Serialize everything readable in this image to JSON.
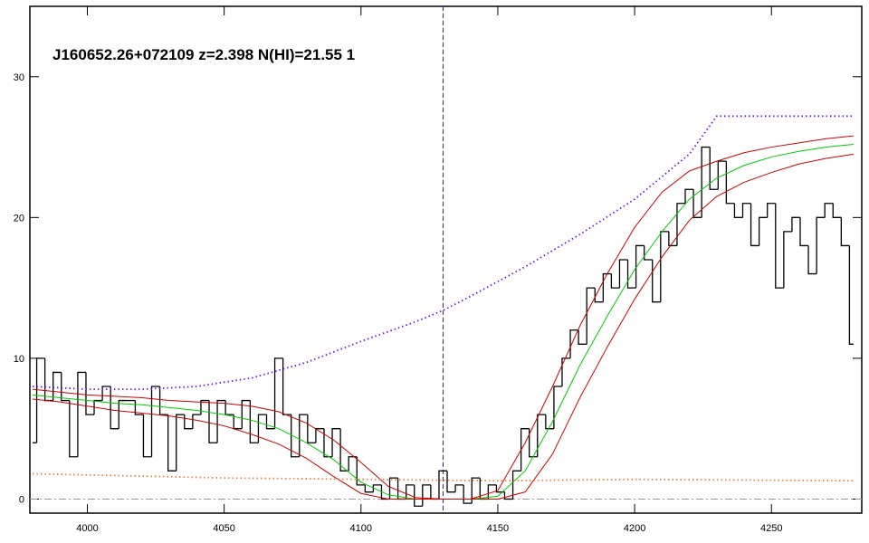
{
  "chart_data": {
    "type": "spectrum",
    "title": "J160652.26+072109 z=2.398 N(HI)=21.55 1",
    "xlim": [
      3979,
      4283
    ],
    "ylim": [
      -1,
      35
    ],
    "xticks": [
      4000,
      4050,
      4100,
      4150,
      4200,
      4250
    ],
    "yticks": [
      0,
      10,
      20,
      30
    ],
    "vline": {
      "x": 4130,
      "color": "#2020c0"
    },
    "hline": {
      "y": 0,
      "color": "#999999"
    },
    "series": [
      {
        "style": "steps",
        "color": "#000000",
        "x": [
          3980,
          3983,
          3986,
          3989,
          3992,
          3995,
          3998,
          4001,
          4004,
          4007,
          4010,
          4013,
          4016,
          4019,
          4022,
          4025,
          4028,
          4031,
          4034,
          4037,
          4040,
          4043,
          4046,
          4049,
          4052,
          4055,
          4058,
          4061,
          4064,
          4067,
          4070,
          4073,
          4076,
          4079,
          4082,
          4085,
          4088,
          4091,
          4094,
          4097,
          4100,
          4103,
          4106,
          4109,
          4112,
          4115,
          4118,
          4121,
          4124,
          4127,
          4130,
          4133,
          4136,
          4139,
          4142,
          4145,
          4148,
          4151,
          4154,
          4157,
          4160,
          4163,
          4166,
          4169,
          4172,
          4175,
          4178,
          4181,
          4184,
          4187,
          4190,
          4193,
          4196,
          4199,
          4202,
          4205,
          4208,
          4211,
          4214,
          4217,
          4220,
          4223,
          4226,
          4229,
          4232,
          4235,
          4238,
          4241,
          4244,
          4247,
          4250,
          4253,
          4256,
          4259,
          4262,
          4265,
          4268,
          4271,
          4274,
          4277,
          4280
        ],
        "values": [
          4,
          10,
          7,
          9,
          7,
          3,
          9,
          6,
          7,
          8,
          5,
          7,
          7,
          6,
          3,
          8,
          6,
          2,
          6,
          5,
          6,
          7,
          4,
          7,
          6,
          5,
          7,
          4,
          6,
          5,
          10,
          6,
          3,
          6,
          4,
          5,
          3,
          5,
          2,
          3,
          1,
          0.5,
          1,
          0,
          1.5,
          0,
          1,
          -0.5,
          1,
          0,
          2,
          0.5,
          1,
          -0.3,
          1.5,
          0,
          1,
          0.5,
          0,
          2,
          5,
          3,
          6,
          5,
          8,
          10,
          12,
          11,
          15,
          14,
          16,
          15,
          17,
          15,
          18,
          17,
          14,
          19,
          18,
          21,
          22,
          20,
          25,
          22,
          24,
          21,
          20,
          21,
          18,
          20,
          21,
          15,
          19,
          20,
          18,
          16,
          20,
          21,
          20,
          18,
          11
        ]
      },
      {
        "style": "solid",
        "color": "#00cc00",
        "x": [
          3980,
          3990,
          4000,
          4010,
          4020,
          4030,
          4040,
          4050,
          4060,
          4070,
          4080,
          4090,
          4100,
          4110,
          4120,
          4130,
          4140,
          4150,
          4160,
          4170,
          4180,
          4190,
          4200,
          4210,
          4220,
          4230,
          4240,
          4250,
          4260,
          4270,
          4280
        ],
        "values": [
          7.4,
          7.2,
          7.0,
          6.8,
          6.7,
          6.5,
          6.3,
          6.0,
          5.6,
          5.0,
          4.0,
          2.8,
          1.2,
          0.3,
          0,
          0,
          0,
          0.2,
          2.0,
          5.5,
          9.5,
          13.0,
          16.3,
          19.0,
          21.3,
          22.8,
          23.7,
          24.3,
          24.7,
          25.0,
          25.2
        ]
      },
      {
        "style": "solid",
        "color": "#cc0000",
        "x": [
          3980,
          3990,
          4000,
          4010,
          4020,
          4030,
          4040,
          4050,
          4060,
          4070,
          4080,
          4090,
          4100,
          4110,
          4120,
          4130,
          4140,
          4150,
          4160,
          4170,
          4180,
          4190,
          4200,
          4210,
          4220,
          4230,
          4240,
          4250,
          4260,
          4270,
          4280
        ],
        "values": [
          7.8,
          7.6,
          7.4,
          7.3,
          7.2,
          7.0,
          6.9,
          6.8,
          6.6,
          6.2,
          5.4,
          4.2,
          2.6,
          0.9,
          0.1,
          0,
          0,
          0.6,
          4.0,
          8.0,
          12.3,
          16.0,
          19.3,
          21.8,
          23.3,
          24.0,
          24.6,
          25.0,
          25.3,
          25.6,
          25.8
        ]
      },
      {
        "style": "solid",
        "color": "#cc0000",
        "x": [
          3980,
          3990,
          4000,
          4010,
          4020,
          4030,
          4040,
          4050,
          4060,
          4070,
          4080,
          4090,
          4100,
          4110,
          4120,
          4130,
          4140,
          4150,
          4160,
          4170,
          4180,
          4190,
          4200,
          4210,
          4220,
          4230,
          4240,
          4250,
          4260,
          4270,
          4280
        ],
        "values": [
          7.1,
          6.9,
          6.6,
          6.3,
          6.1,
          5.9,
          5.6,
          5.2,
          4.6,
          3.9,
          2.9,
          1.6,
          0.4,
          0,
          0,
          0,
          0,
          0,
          0.5,
          3.2,
          7.2,
          10.8,
          14.2,
          17.2,
          19.8,
          21.5,
          22.5,
          23.2,
          23.8,
          24.2,
          24.5
        ]
      },
      {
        "style": "dotted",
        "color": "#6a1cf0",
        "x": [
          3980,
          4000,
          4020,
          4040,
          4060,
          4080,
          4100,
          4120,
          4130,
          4140,
          4160,
          4180,
          4200,
          4220,
          4230,
          4280
        ],
        "values": [
          8.0,
          7.8,
          7.8,
          8.0,
          8.6,
          9.7,
          11.2,
          12.6,
          13.4,
          14.4,
          16.5,
          18.8,
          21.3,
          24.5,
          27.2,
          27.2
        ]
      },
      {
        "style": "dotted",
        "color": "#f08040",
        "x": [
          3980,
          4050,
          4150,
          4200,
          4280
        ],
        "values": [
          1.8,
          1.5,
          1.3,
          1.4,
          1.3
        ]
      }
    ]
  }
}
